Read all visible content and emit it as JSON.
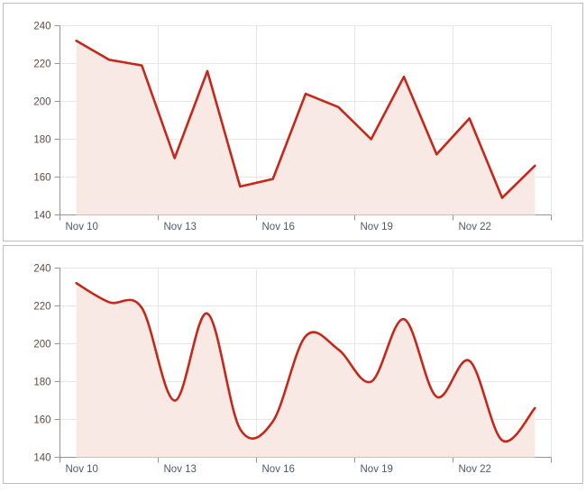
{
  "page": {
    "background": "#ffffff",
    "panel_border": "#bdbdbd"
  },
  "chart_data": [
    {
      "type": "area",
      "line_shape": "straight",
      "title": "",
      "xlabel": "",
      "ylabel": "",
      "x": [
        "Nov 10",
        "Nov 11",
        "Nov 12",
        "Nov 13",
        "Nov 14",
        "Nov 15",
        "Nov 16",
        "Nov 17",
        "Nov 18",
        "Nov 19",
        "Nov 20",
        "Nov 21",
        "Nov 22",
        "Nov 23",
        "Nov 24"
      ],
      "values": [
        232,
        222,
        219,
        170,
        216,
        155,
        159,
        204,
        197,
        180,
        213,
        172,
        191,
        149,
        166
      ],
      "ylim": [
        140,
        240
      ],
      "y_tick_interval": 20,
      "ytick_labels": [
        "240",
        "220",
        "200",
        "180",
        "160",
        "140"
      ],
      "xtick_labels": [
        "Nov 10",
        "Nov 13",
        "Nov 16",
        "Nov 19",
        "Nov 22"
      ],
      "grid": "on",
      "legend": "off",
      "colors": {
        "line": "#c5281b",
        "fill": "#f9e9e4",
        "grid": "#e6e6e6",
        "axis": "#959595",
        "xtick_text": "#4d5a6b",
        "ytick_text": "#5d4c43"
      }
    },
    {
      "type": "area",
      "line_shape": "smooth",
      "title": "",
      "xlabel": "",
      "ylabel": "",
      "x": [
        "Nov 10",
        "Nov 11",
        "Nov 12",
        "Nov 13",
        "Nov 14",
        "Nov 15",
        "Nov 16",
        "Nov 17",
        "Nov 18",
        "Nov 19",
        "Nov 20",
        "Nov 21",
        "Nov 22",
        "Nov 23",
        "Nov 24"
      ],
      "values": [
        232,
        222,
        219,
        170,
        216,
        155,
        159,
        204,
        197,
        180,
        213,
        172,
        191,
        149,
        166
      ],
      "ylim": [
        140,
        240
      ],
      "y_tick_interval": 20,
      "ytick_labels": [
        "240",
        "220",
        "200",
        "180",
        "160",
        "140"
      ],
      "xtick_labels": [
        "Nov 10",
        "Nov 13",
        "Nov 16",
        "Nov 19",
        "Nov 22"
      ],
      "grid": "on",
      "legend": "off",
      "colors": {
        "line": "#c5281b",
        "fill": "#f9e9e4",
        "grid": "#e6e6e6",
        "axis": "#959595",
        "xtick_text": "#4d5a6b",
        "ytick_text": "#5d4c43"
      }
    }
  ]
}
